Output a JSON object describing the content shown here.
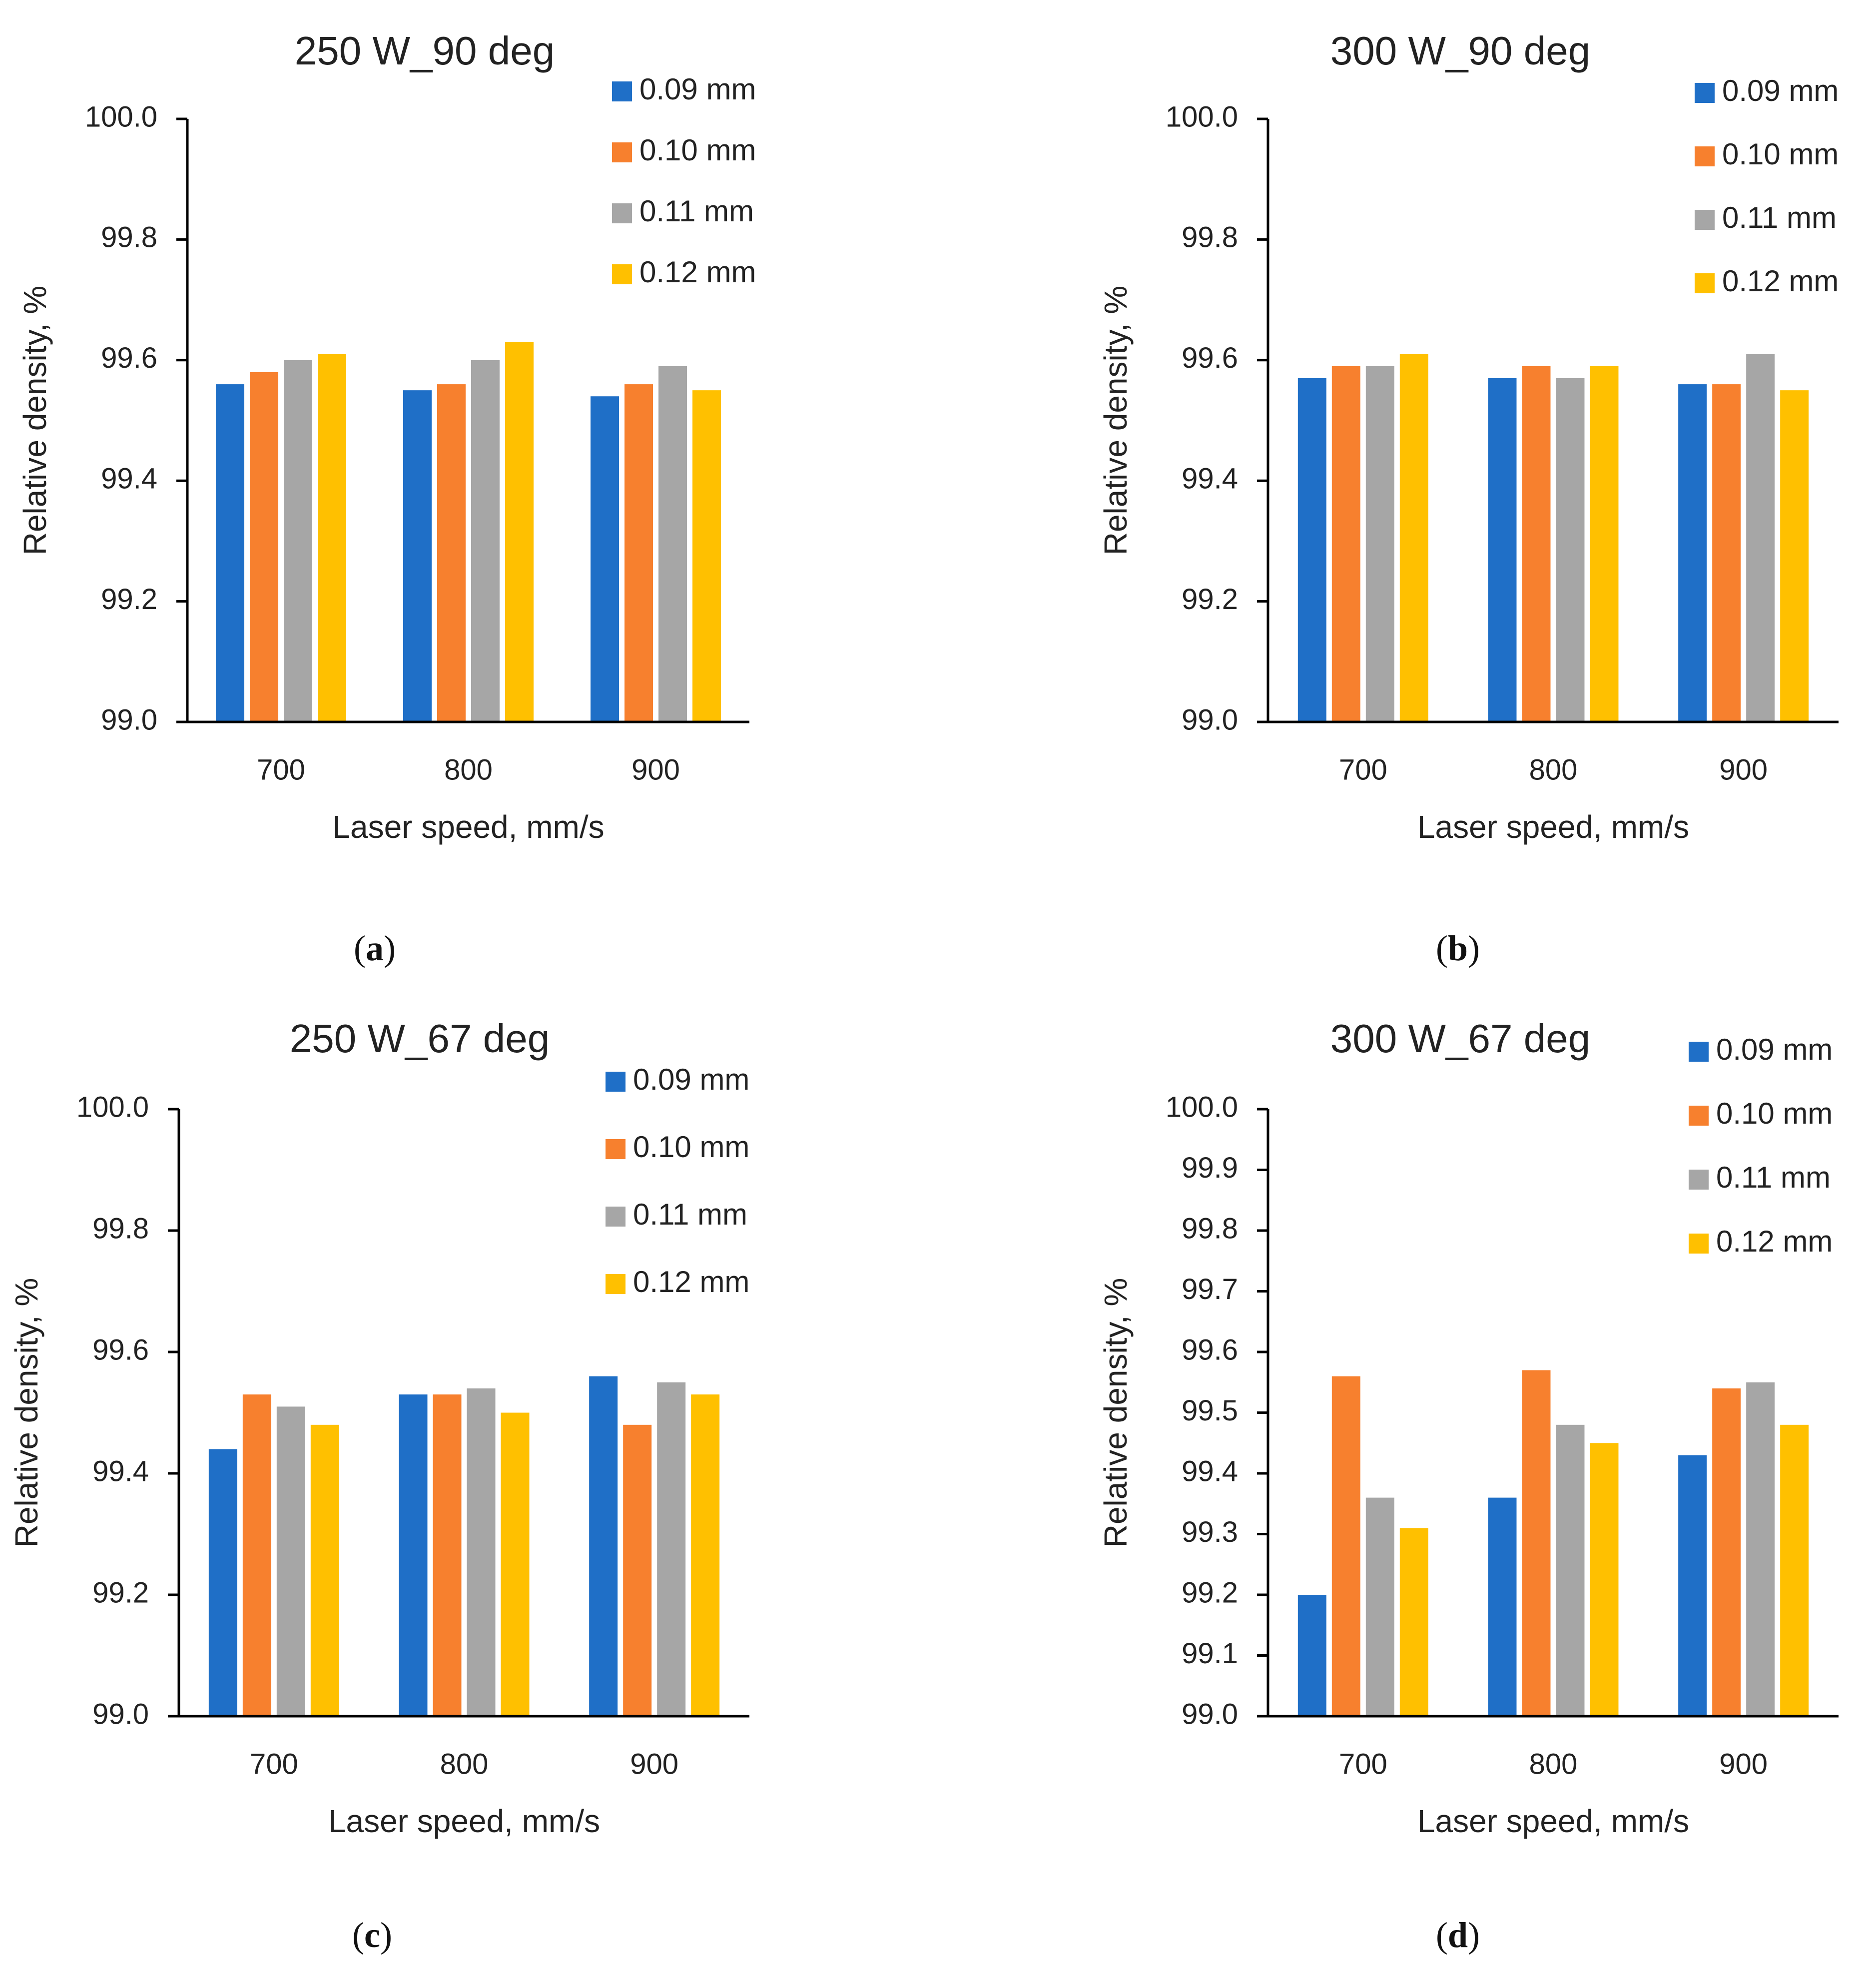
{
  "colors": {
    "0.09 mm": "#1f6fc7",
    "0.10 mm": "#f7802e",
    "0.11 mm": "#a6a6a6",
    "0.12 mm": "#ffc000"
  },
  "chart_data": [
    {
      "type": "bar",
      "panel_label": "a",
      "title": "250 W_90 deg",
      "xlabel": "Laser speed, mm/s",
      "ylabel": "Relative density, %",
      "categories": [
        "700",
        "800",
        "900"
      ],
      "ylim": [
        99.0,
        100.0
      ],
      "yticks": [
        "99.0",
        "99.2",
        "99.4",
        "99.6",
        "99.8",
        "100.0"
      ],
      "legend_position": "top-right",
      "series": [
        {
          "name": "0.09 mm",
          "values": [
            99.56,
            99.55,
            99.54
          ]
        },
        {
          "name": "0.10 mm",
          "values": [
            99.58,
            99.56,
            99.56
          ]
        },
        {
          "name": "0.11 mm",
          "values": [
            99.6,
            99.6,
            99.59
          ]
        },
        {
          "name": "0.12 mm",
          "values": [
            99.61,
            99.63,
            99.55
          ]
        }
      ]
    },
    {
      "type": "bar",
      "panel_label": "b",
      "title": "300 W_90 deg",
      "xlabel": "Laser speed, mm/s",
      "ylabel": "Relative density, %",
      "categories": [
        "700",
        "800",
        "900"
      ],
      "ylim": [
        99.0,
        100.0
      ],
      "yticks": [
        "99.0",
        "99.2",
        "99.4",
        "99.6",
        "99.8",
        "100.0"
      ],
      "legend_position": "top-right",
      "series": [
        {
          "name": "0.09 mm",
          "values": [
            99.57,
            99.57,
            99.56
          ]
        },
        {
          "name": "0.10 mm",
          "values": [
            99.59,
            99.59,
            99.56
          ]
        },
        {
          "name": "0.11 mm",
          "values": [
            99.59,
            99.57,
            99.61
          ]
        },
        {
          "name": "0.12 mm",
          "values": [
            99.61,
            99.59,
            99.55
          ]
        }
      ]
    },
    {
      "type": "bar",
      "panel_label": "c",
      "title": "250 W_67 deg",
      "xlabel": "Laser speed, mm/s",
      "ylabel": "Relative density, %",
      "categories": [
        "700",
        "800",
        "900"
      ],
      "ylim": [
        99.0,
        100.0
      ],
      "yticks": [
        "99.0",
        "99.2",
        "99.4",
        "99.6",
        "99.8",
        "100.0"
      ],
      "legend_position": "top-right",
      "series": [
        {
          "name": "0.09 mm",
          "values": [
            99.44,
            99.53,
            99.56
          ]
        },
        {
          "name": "0.10 mm",
          "values": [
            99.53,
            99.53,
            99.48
          ]
        },
        {
          "name": "0.11 mm",
          "values": [
            99.51,
            99.54,
            99.55
          ]
        },
        {
          "name": "0.12 mm",
          "values": [
            99.48,
            99.5,
            99.53
          ]
        }
      ]
    },
    {
      "type": "bar",
      "panel_label": "d",
      "title": "300 W_67 deg",
      "xlabel": "Laser speed, mm/s",
      "ylabel": "Relative density, %",
      "categories": [
        "700",
        "800",
        "900"
      ],
      "ylim": [
        99.0,
        100.0
      ],
      "yticks": [
        "99.0",
        "99.1",
        "99.2",
        "99.3",
        "99.4",
        "99.5",
        "99.6",
        "99.7",
        "99.8",
        "99.9",
        "100.0"
      ],
      "legend_position": "top-right",
      "series": [
        {
          "name": "0.09 mm",
          "values": [
            99.2,
            99.36,
            99.43
          ]
        },
        {
          "name": "0.10 mm",
          "values": [
            99.56,
            99.57,
            99.54
          ]
        },
        {
          "name": "0.11 mm",
          "values": [
            99.36,
            99.48,
            99.55
          ]
        },
        {
          "name": "0.12 mm",
          "values": [
            99.31,
            99.45,
            99.48
          ]
        }
      ]
    }
  ]
}
